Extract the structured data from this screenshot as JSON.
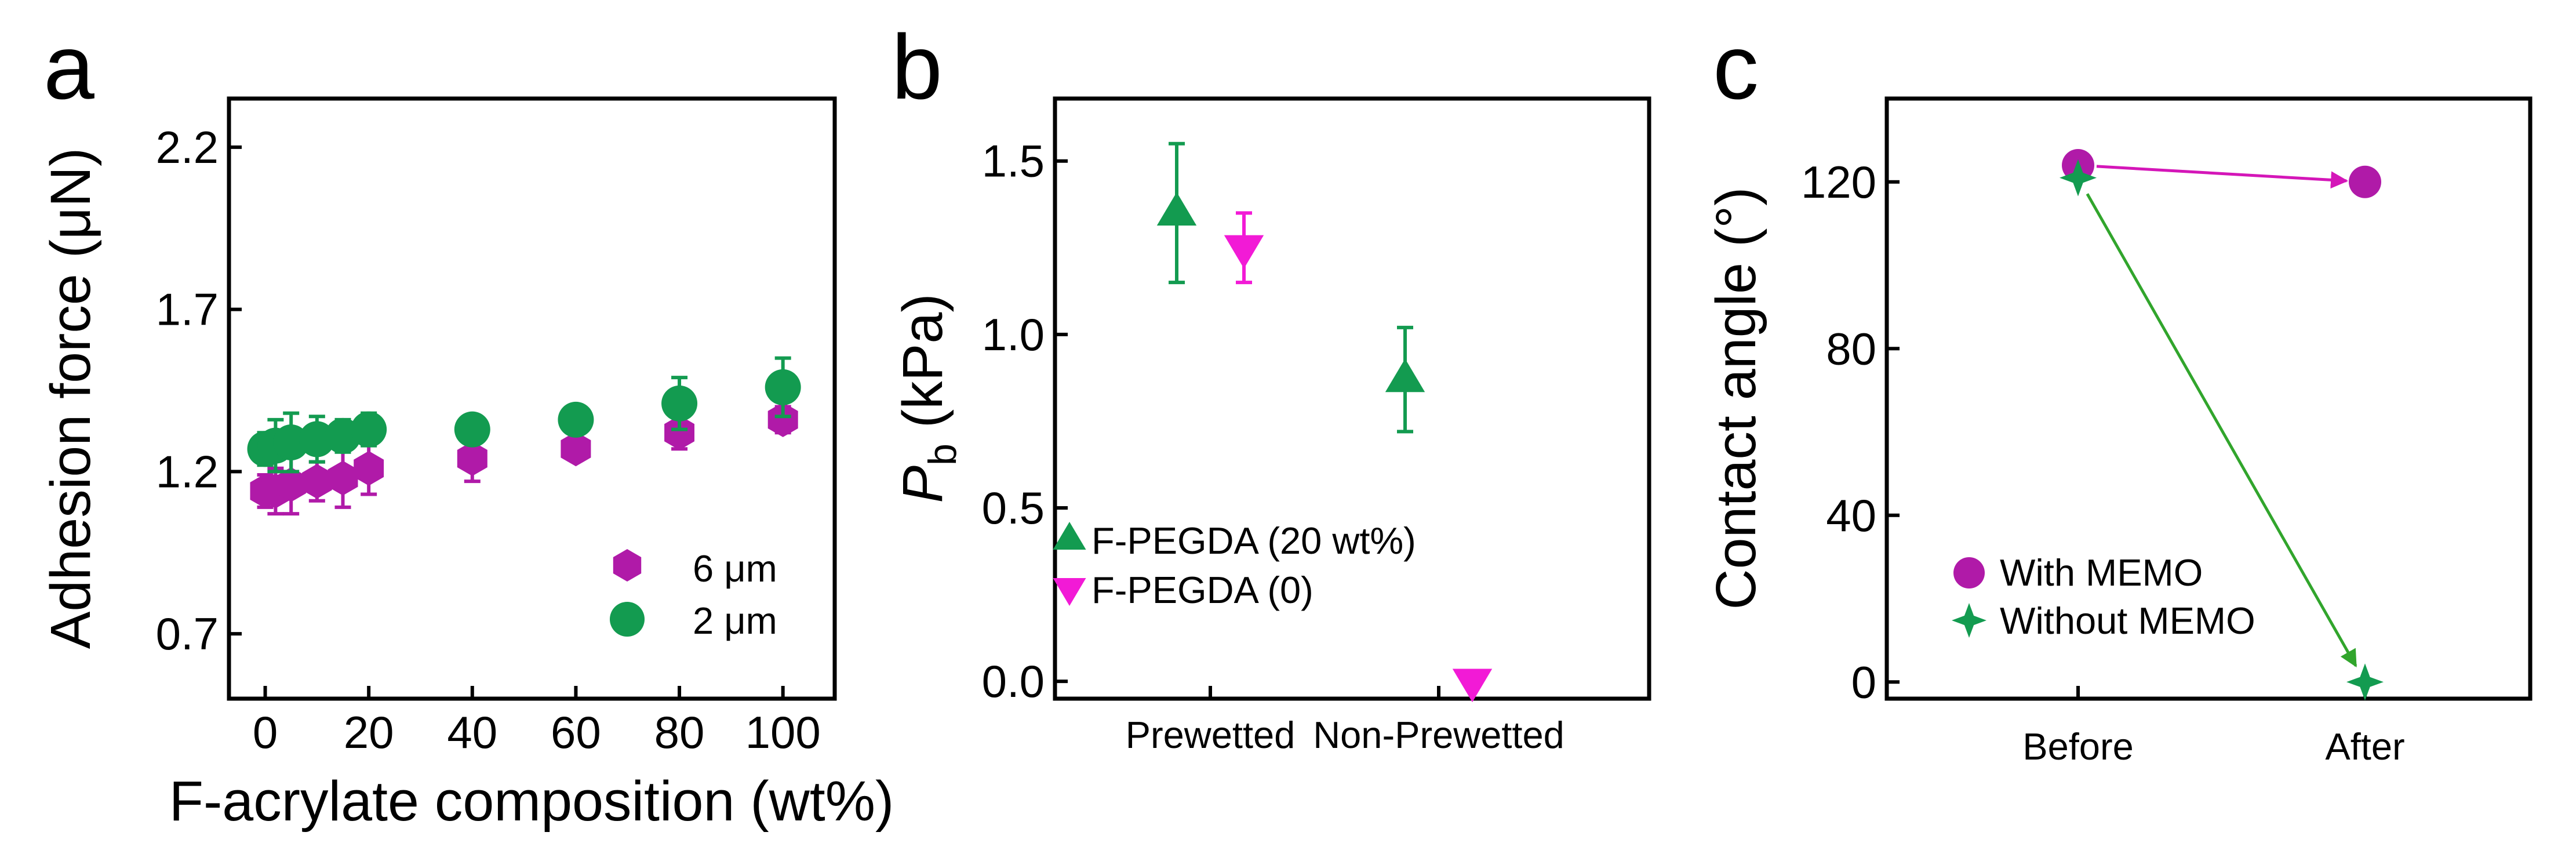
{
  "colors": {
    "magenta": "#b01aa8",
    "green": "#139b50",
    "pink": "#f21ad6",
    "connector_magenta": "#d416b8",
    "connector_green": "#31a52c"
  },
  "chart_data": [
    {
      "panel": "a",
      "type": "scatter",
      "xlabel": "F-acrylate composition (wt%)",
      "ylabel": "Adhesion force (μN)",
      "xlim": [
        -7,
        110
      ],
      "ylim": [
        0.5,
        2.35
      ],
      "xticks": [
        0,
        20,
        40,
        60,
        80,
        100
      ],
      "yticks": [
        0.7,
        1.2,
        1.7,
        2.2
      ],
      "ytick_labels": [
        "0.7",
        "1.2",
        "1.7",
        "2.2"
      ],
      "legend_position": "lower-right",
      "series": [
        {
          "name": "6 μm",
          "marker": "hexagon",
          "color": "#b01aa8",
          "x": [
            0,
            2,
            5,
            10,
            15,
            20,
            40,
            60,
            80,
            100
          ],
          "y": [
            1.14,
            1.14,
            1.16,
            1.17,
            1.18,
            1.21,
            1.24,
            1.27,
            1.32,
            1.36
          ],
          "err": [
            0.05,
            0.07,
            0.09,
            0.06,
            0.09,
            0.08,
            0.07,
            0.03,
            0.05,
            0.04
          ]
        },
        {
          "name": "2 μm",
          "marker": "circle",
          "color": "#139b50",
          "x": [
            0,
            2,
            5,
            10,
            15,
            20,
            40,
            60,
            80,
            100
          ],
          "y": [
            1.27,
            1.28,
            1.29,
            1.3,
            1.31,
            1.33,
            1.33,
            1.36,
            1.41,
            1.46
          ],
          "err": [
            0.05,
            0.08,
            0.09,
            0.07,
            0.05,
            0.05,
            0.03,
            0.03,
            0.08,
            0.09
          ]
        }
      ]
    },
    {
      "panel": "b",
      "type": "scatter",
      "ylabel_main": "P",
      "ylabel_sub": "b",
      "ylabel_unit": " (kPa)",
      "categories": [
        "Prewetted",
        "Non-Prewetted"
      ],
      "ylim": [
        -0.05,
        1.68
      ],
      "yticks": [
        0.0,
        0.5,
        1.0,
        1.5
      ],
      "ytick_labels": [
        "0.0",
        "0.5",
        "1.0",
        "1.5"
      ],
      "legend_position": "lower-left",
      "series": [
        {
          "name": "F-PEGDA (20 wt%)",
          "marker": "triangle-up",
          "color": "#139b50",
          "category_index": [
            0,
            1
          ],
          "y": [
            1.35,
            0.87
          ],
          "err": [
            0.2,
            0.15
          ]
        },
        {
          "name": "F-PEGDA (0)",
          "marker": "triangle-down",
          "color": "#f21ad6",
          "category_index": [
            0,
            1
          ],
          "y": [
            1.25,
            0.0
          ],
          "err": [
            0.1,
            0.0
          ]
        }
      ]
    },
    {
      "panel": "c",
      "type": "scatter",
      "ylabel": "Contact angle (°)",
      "categories": [
        "Before",
        "After"
      ],
      "ylim": [
        -4,
        140
      ],
      "yticks": [
        0,
        40,
        80,
        120
      ],
      "ytick_labels": [
        "0",
        "40",
        "80",
        "120"
      ],
      "legend_position": "lower-left",
      "series": [
        {
          "name": "With MEMO",
          "marker": "circle",
          "color": "#b01aa8",
          "connector_color": "#d416b8",
          "y": [
            124,
            120
          ]
        },
        {
          "name": "Without MEMO",
          "marker": "star4",
          "color": "#139b50",
          "connector_color": "#31a52c",
          "y": [
            121,
            0
          ]
        }
      ]
    }
  ]
}
